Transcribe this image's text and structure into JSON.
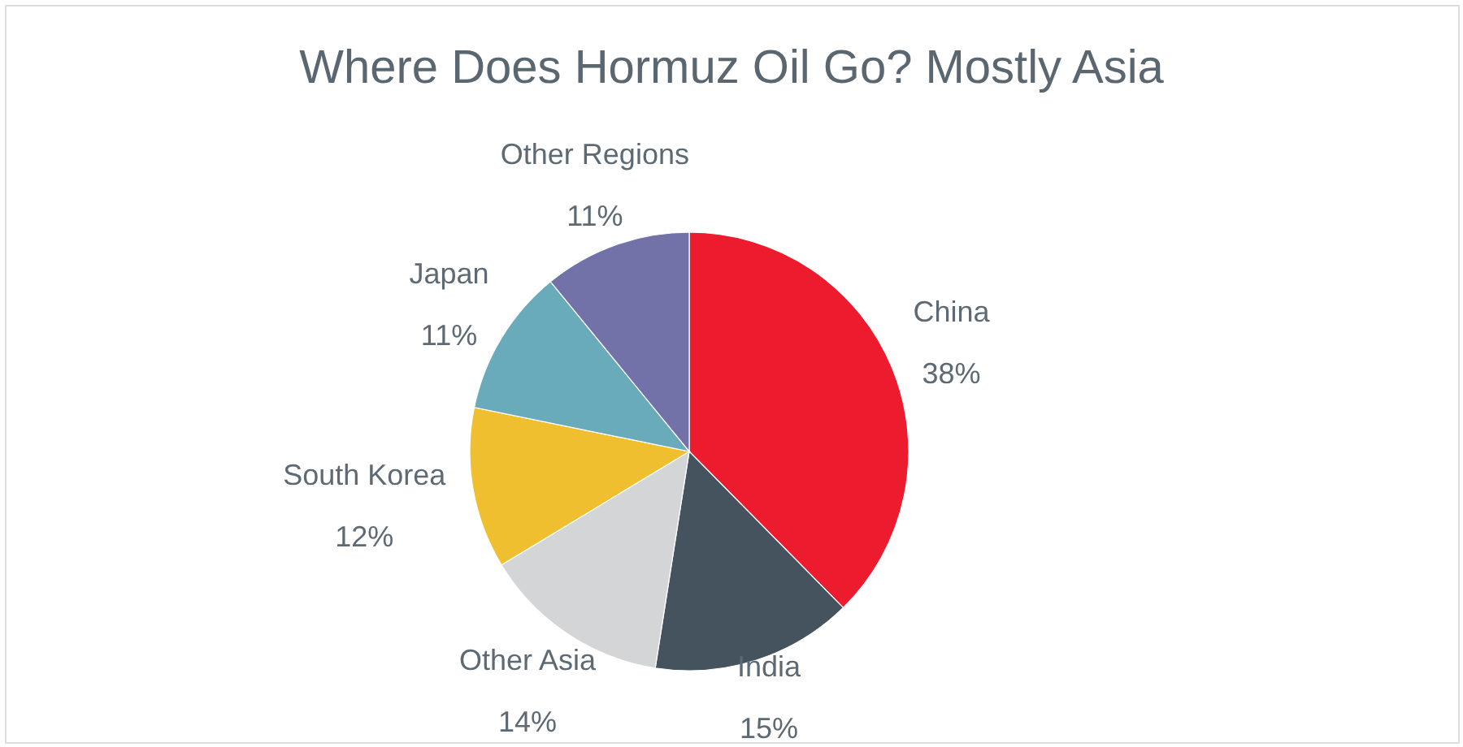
{
  "chart_data": {
    "type": "pie",
    "title": "Where Does Hormuz Oil Go? Mostly Asia",
    "categories": [
      "China",
      "India",
      "Other Asia",
      "South Korea",
      "Japan",
      "Other Regions"
    ],
    "values": [
      38,
      15,
      14,
      12,
      11,
      11
    ],
    "colors": [
      "#ec1b2e",
      "#44535e",
      "#d4d5d7",
      "#f0bf30",
      "#6aabbb",
      "#7271a8"
    ],
    "value_labels": [
      "38%",
      "15%",
      "14%",
      "12%",
      "11%",
      "11%"
    ]
  }
}
